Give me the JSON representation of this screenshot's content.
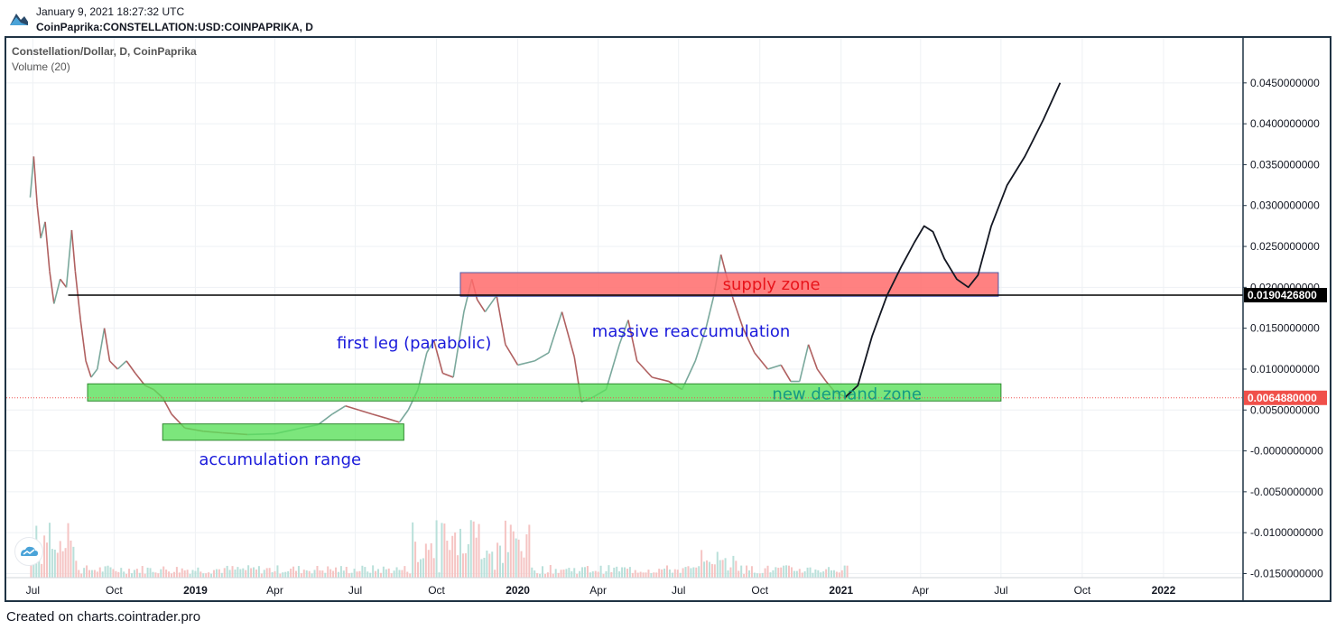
{
  "header": {
    "timestamp": "January 9, 2021 18:27:32 UTC",
    "symbol": "CoinPaprika:CONSTELLATION:USD:COINPAPRIKA, D"
  },
  "legend": {
    "title": "Constellation/Dollar, D, CoinPaprika",
    "volume": "Volume (20)"
  },
  "footer": "Created on charts.cointrader.pro",
  "colors": {
    "up": "#26a69a",
    "down": "#ef5350",
    "supply_zone": "#ff6b6b",
    "demand_zone": "#5be05b",
    "annotation_blue": "#1a1adb",
    "annotation_red": "#e8141b",
    "annotation_teal": "#159b83",
    "price_label_bg": "#f0504a",
    "level_label_bg": "#000000"
  },
  "chart_data": {
    "type": "line",
    "title": "Constellation/Dollar, D, CoinPaprika",
    "x_ticks": [
      "Jul",
      "Oct",
      "2019",
      "Apr",
      "Jul",
      "Oct",
      "2020",
      "Apr",
      "Jul",
      "Oct",
      "2021",
      "Apr",
      "Jul",
      "Oct",
      "2022"
    ],
    "x_ticks_dates": [
      "2018-07-01",
      "2018-10-01",
      "2019-01-01",
      "2019-04-01",
      "2019-07-01",
      "2019-10-01",
      "2020-01-01",
      "2020-04-01",
      "2020-07-01",
      "2020-10-01",
      "2021-01-01",
      "2021-04-01",
      "2021-07-01",
      "2021-10-01",
      "2022-01-01"
    ],
    "y_ticks": [
      0.045,
      0.04,
      0.035,
      0.03,
      0.025,
      0.02,
      0.015,
      0.01,
      0.005,
      0,
      -0.005,
      -0.01,
      -0.015
    ],
    "y_tick_labels": [
      "0.0450000000",
      "0.0400000000",
      "0.0350000000",
      "0.0300000000",
      "0.0250000000",
      "0.0200000000",
      "0.0150000000",
      "0.0100000000",
      "0.0050000000",
      "-0.0000000000",
      "-0.0050000000",
      "-0.0100000000",
      "-0.0150000000"
    ],
    "ylim": [
      -0.0155,
      0.0505
    ],
    "xlim": [
      "2018-06-01",
      "2022-04-01"
    ],
    "grid": true,
    "series": [
      {
        "values": [
          {
            "x": "2018-06-28",
            "y": 0.031
          },
          {
            "x": "2018-07-02",
            "y": 0.036
          },
          {
            "x": "2018-07-06",
            "y": 0.03
          },
          {
            "x": "2018-07-10",
            "y": 0.026
          },
          {
            "x": "2018-07-15",
            "y": 0.028
          },
          {
            "x": "2018-07-20",
            "y": 0.022
          },
          {
            "x": "2018-07-25",
            "y": 0.018
          },
          {
            "x": "2018-08-01",
            "y": 0.021
          },
          {
            "x": "2018-08-08",
            "y": 0.02
          },
          {
            "x": "2018-08-14",
            "y": 0.027
          },
          {
            "x": "2018-08-18",
            "y": 0.022
          },
          {
            "x": "2018-08-24",
            "y": 0.016
          },
          {
            "x": "2018-08-30",
            "y": 0.011
          },
          {
            "x": "2018-09-05",
            "y": 0.009
          },
          {
            "x": "2018-09-12",
            "y": 0.01
          },
          {
            "x": "2018-09-20",
            "y": 0.015
          },
          {
            "x": "2018-09-26",
            "y": 0.011
          },
          {
            "x": "2018-10-05",
            "y": 0.01
          },
          {
            "x": "2018-10-15",
            "y": 0.011
          },
          {
            "x": "2018-10-25",
            "y": 0.0095
          },
          {
            "x": "2018-11-05",
            "y": 0.008
          },
          {
            "x": "2018-11-15",
            "y": 0.0075
          },
          {
            "x": "2018-11-25",
            "y": 0.0065
          },
          {
            "x": "2018-12-05",
            "y": 0.0045
          },
          {
            "x": "2018-12-20",
            "y": 0.0028
          },
          {
            "x": "2019-01-10",
            "y": 0.0024
          },
          {
            "x": "2019-02-01",
            "y": 0.0022
          },
          {
            "x": "2019-03-01",
            "y": 0.002
          },
          {
            "x": "2019-04-01",
            "y": 0.0021
          },
          {
            "x": "2019-05-01",
            "y": 0.0028
          },
          {
            "x": "2019-05-20",
            "y": 0.0032
          },
          {
            "x": "2019-06-05",
            "y": 0.0045
          },
          {
            "x": "2019-06-20",
            "y": 0.0055
          },
          {
            "x": "2019-07-05",
            "y": 0.005
          },
          {
            "x": "2019-07-20",
            "y": 0.0045
          },
          {
            "x": "2019-08-05",
            "y": 0.004
          },
          {
            "x": "2019-08-20",
            "y": 0.0035
          },
          {
            "x": "2019-08-30",
            "y": 0.005
          },
          {
            "x": "2019-09-10",
            "y": 0.0075
          },
          {
            "x": "2019-09-20",
            "y": 0.012
          },
          {
            "x": "2019-09-28",
            "y": 0.0135
          },
          {
            "x": "2019-10-08",
            "y": 0.0095
          },
          {
            "x": "2019-10-20",
            "y": 0.009
          },
          {
            "x": "2019-11-01",
            "y": 0.017
          },
          {
            "x": "2019-11-10",
            "y": 0.021
          },
          {
            "x": "2019-11-16",
            "y": 0.0185
          },
          {
            "x": "2019-11-25",
            "y": 0.017
          },
          {
            "x": "2019-12-08",
            "y": 0.019
          },
          {
            "x": "2019-12-18",
            "y": 0.013
          },
          {
            "x": "2020-01-01",
            "y": 0.0105
          },
          {
            "x": "2020-01-20",
            "y": 0.011
          },
          {
            "x": "2020-02-05",
            "y": 0.012
          },
          {
            "x": "2020-02-20",
            "y": 0.017
          },
          {
            "x": "2020-03-05",
            "y": 0.0115
          },
          {
            "x": "2020-03-13",
            "y": 0.006
          },
          {
            "x": "2020-03-25",
            "y": 0.0065
          },
          {
            "x": "2020-04-10",
            "y": 0.0075
          },
          {
            "x": "2020-04-25",
            "y": 0.013
          },
          {
            "x": "2020-05-05",
            "y": 0.016
          },
          {
            "x": "2020-05-15",
            "y": 0.011
          },
          {
            "x": "2020-06-01",
            "y": 0.009
          },
          {
            "x": "2020-06-20",
            "y": 0.0085
          },
          {
            "x": "2020-07-05",
            "y": 0.0075
          },
          {
            "x": "2020-07-20",
            "y": 0.011
          },
          {
            "x": "2020-08-01",
            "y": 0.015
          },
          {
            "x": "2020-08-10",
            "y": 0.019
          },
          {
            "x": "2020-08-18",
            "y": 0.024
          },
          {
            "x": "2020-08-24",
            "y": 0.0215
          },
          {
            "x": "2020-09-01",
            "y": 0.0185
          },
          {
            "x": "2020-09-12",
            "y": 0.015
          },
          {
            "x": "2020-09-25",
            "y": 0.012
          },
          {
            "x": "2020-10-10",
            "y": 0.01
          },
          {
            "x": "2020-10-25",
            "y": 0.0105
          },
          {
            "x": "2020-11-05",
            "y": 0.0085
          },
          {
            "x": "2020-11-15",
            "y": 0.0085
          },
          {
            "x": "2020-11-25",
            "y": 0.013
          },
          {
            "x": "2020-12-05",
            "y": 0.01
          },
          {
            "x": "2020-12-15",
            "y": 0.0085
          },
          {
            "x": "2020-12-25",
            "y": 0.0072
          },
          {
            "x": "2021-01-08",
            "y": 0.0065
          }
        ]
      }
    ],
    "annotations": {
      "supply_zone": {
        "label": "supply zone",
        "y_top": 0.0218,
        "y_bottom": 0.0189,
        "x_start": "2019-10-28",
        "x_end": "2021-06-28"
      },
      "demand_zone": {
        "label": "new demand zone",
        "y_top": 0.0082,
        "y_bottom": 0.0061,
        "x_start": "2018-09-01",
        "x_end": "2021-07-01"
      },
      "accumulation_range": {
        "label": "accumulation range",
        "y_top": 0.0033,
        "y_bottom": 0.0013,
        "x_start": "2018-11-25",
        "x_end": "2019-08-25"
      },
      "labels": [
        {
          "text": "first leg (parabolic)",
          "x": "2019-08-01",
          "y": 0.0108
        },
        {
          "text": "massive reaccumulation",
          "x": "2020-06-20",
          "y": 0.0128
        }
      ],
      "level_line": {
        "y": 0.01904268,
        "label": "0.0190426800",
        "x_start": "2018-08-10"
      },
      "current_price": {
        "y": 0.006488,
        "label": "0.0064880000"
      },
      "projection": [
        {
          "x": "2021-01-05",
          "y": 0.0065
        },
        {
          "x": "2021-01-20",
          "y": 0.008
        },
        {
          "x": "2021-02-05",
          "y": 0.014
        },
        {
          "x": "2021-02-22",
          "y": 0.019
        },
        {
          "x": "2021-03-10",
          "y": 0.0225
        },
        {
          "x": "2021-03-25",
          "y": 0.0255
        },
        {
          "x": "2021-04-05",
          "y": 0.0275
        },
        {
          "x": "2021-04-15",
          "y": 0.0268
        },
        {
          "x": "2021-04-28",
          "y": 0.0235
        },
        {
          "x": "2021-05-12",
          "y": 0.021
        },
        {
          "x": "2021-05-25",
          "y": 0.02
        },
        {
          "x": "2021-06-05",
          "y": 0.0215
        },
        {
          "x": "2021-06-20",
          "y": 0.0275
        },
        {
          "x": "2021-07-08",
          "y": 0.0325
        },
        {
          "x": "2021-07-28",
          "y": 0.036
        },
        {
          "x": "2021-08-18",
          "y": 0.0405
        },
        {
          "x": "2021-09-06",
          "y": 0.045
        }
      ]
    }
  }
}
